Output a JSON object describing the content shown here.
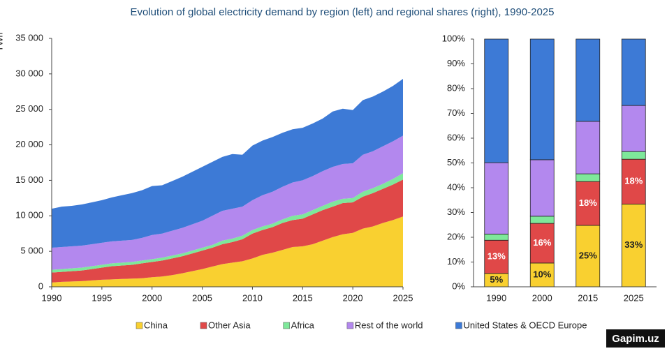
{
  "title": "Evolution of global electricity demand by region (left) and regional shares (right), 1990-2025",
  "watermark": "Gapim.uz",
  "chart_data": [
    {
      "type": "area",
      "stacked": true,
      "y_label": "TWh",
      "x": [
        1990,
        1991,
        1992,
        1993,
        1994,
        1995,
        1996,
        1997,
        1998,
        1999,
        2000,
        2001,
        2002,
        2003,
        2004,
        2005,
        2006,
        2007,
        2008,
        2009,
        2010,
        2011,
        2012,
        2013,
        2014,
        2015,
        2016,
        2017,
        2018,
        2019,
        2020,
        2021,
        2022,
        2023,
        2024,
        2025
      ],
      "xlim": [
        1990,
        2025
      ],
      "xticks": [
        1990,
        1995,
        2000,
        2005,
        2010,
        2015,
        2020,
        2025
      ],
      "ylim": [
        0,
        35000
      ],
      "yticks": [
        0,
        {
          "value": 5000,
          "label": "5 000"
        },
        {
          "value": 10000,
          "label": "10 000"
        },
        {
          "value": 15000,
          "label": "15 000"
        },
        {
          "value": 20000,
          "label": "20 000"
        },
        {
          "value": 25000,
          "label": "25 000"
        },
        {
          "value": 30000,
          "label": "30 000"
        },
        {
          "value": 35000,
          "label": "35 000"
        }
      ],
      "series": [
        {
          "name": "China",
          "color": "#f9d030",
          "values": [
            600,
            700,
            750,
            800,
            900,
            1000,
            1050,
            1100,
            1150,
            1200,
            1350,
            1450,
            1650,
            1900,
            2200,
            2500,
            2850,
            3200,
            3400,
            3600,
            4000,
            4500,
            4800,
            5200,
            5600,
            5700,
            6000,
            6500,
            7000,
            7400,
            7600,
            8200,
            8500,
            9000,
            9400,
            9900
          ]
        },
        {
          "name": "Other Asia",
          "color": "#e04848",
          "values": [
            1400,
            1400,
            1450,
            1500,
            1600,
            1700,
            1850,
            1900,
            1950,
            2100,
            2150,
            2250,
            2350,
            2400,
            2500,
            2600,
            2650,
            2800,
            2900,
            3100,
            3500,
            3500,
            3600,
            3800,
            3800,
            3900,
            4200,
            4300,
            4300,
            4400,
            4300,
            4500,
            4700,
            4800,
            5000,
            5200
          ]
        },
        {
          "name": "Africa",
          "color": "#7ee89a",
          "values": [
            400,
            400,
            400,
            400,
            400,
            400,
            400,
            400,
            400,
            400,
            400,
            400,
            400,
            400,
            400,
            400,
            400,
            500,
            500,
            500,
            500,
            500,
            500,
            500,
            600,
            600,
            600,
            600,
            700,
            600,
            600,
            700,
            700,
            700,
            800,
            900
          ]
        },
        {
          "name": "Rest of the world",
          "color": "#b388ee",
          "values": [
            3100,
            3100,
            3100,
            3100,
            3100,
            3100,
            3100,
            3100,
            3100,
            3200,
            3400,
            3400,
            3500,
            3600,
            3700,
            3800,
            4100,
            4200,
            4200,
            4100,
            4200,
            4400,
            4500,
            4600,
            4700,
            4800,
            4800,
            4900,
            4900,
            4900,
            4900,
            5200,
            5200,
            5300,
            5300,
            5300
          ]
        },
        {
          "name": "United States & OECD Europe",
          "color": "#3d7ad6",
          "values": [
            5500,
            5700,
            5700,
            5800,
            5900,
            6000,
            6200,
            6400,
            6600,
            6700,
            6900,
            6800,
            7000,
            7200,
            7400,
            7600,
            7600,
            7600,
            7700,
            7300,
            7700,
            7700,
            7700,
            7600,
            7500,
            7400,
            7400,
            7400,
            7800,
            7800,
            7500,
            7700,
            7700,
            7700,
            7800,
            8000
          ]
        }
      ]
    },
    {
      "type": "bar",
      "stacked": true,
      "categories": [
        "1990",
        "2000",
        "2015",
        "2025"
      ],
      "ylim": [
        0,
        100
      ],
      "yticks": [
        {
          "value": 0,
          "label": "0%"
        },
        {
          "value": 10,
          "label": "10%"
        },
        {
          "value": 20,
          "label": "20%"
        },
        {
          "value": 30,
          "label": "30%"
        },
        {
          "value": 40,
          "label": "40%"
        },
        {
          "value": 50,
          "label": "50%"
        },
        {
          "value": 60,
          "label": "60%"
        },
        {
          "value": 70,
          "label": "70%"
        },
        {
          "value": 80,
          "label": "80%"
        },
        {
          "value": 90,
          "label": "90%"
        },
        {
          "value": 100,
          "label": "100%"
        }
      ],
      "series": [
        {
          "color": "#f9d030",
          "label_color": "#222222",
          "values": [
            5.4,
            9.6,
            24.8,
            33.4
          ],
          "value_labels": [
            "5%",
            "10%",
            "25%",
            "33%"
          ]
        },
        {
          "color": "#e04848",
          "label_color": "#ffffff",
          "values": [
            13.4,
            16.0,
            17.7,
            18.1
          ],
          "value_labels": [
            "13%",
            "16%",
            "18%",
            "18%"
          ]
        },
        {
          "color": "#7ee89a",
          "values": [
            2.5,
            2.9,
            3.1,
            3.1
          ]
        },
        {
          "color": "#b388ee",
          "values": [
            28.8,
            22.8,
            21.2,
            18.6
          ]
        },
        {
          "color": "#3d7ad6",
          "values": [
            49.9,
            48.7,
            33.2,
            26.8
          ]
        }
      ]
    }
  ]
}
